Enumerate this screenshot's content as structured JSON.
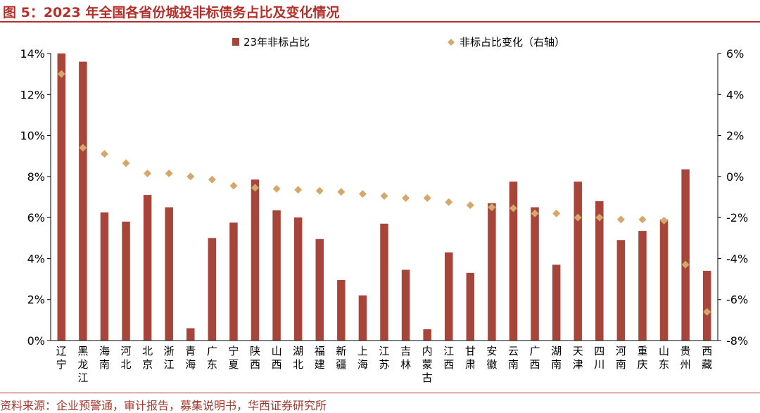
{
  "title": "图 5：2023 年全国各省份城投非标债务占比及变化情况",
  "source": "资料来源：企业预警通，审计报告，募集说明书，华西证券研究所",
  "colors": {
    "bar": "#a8453a",
    "marker": "#d4a86a",
    "accent": "#b5302a"
  },
  "chart_data": {
    "type": "bar",
    "categories": [
      "辽宁",
      "黑龙江",
      "海南",
      "河北",
      "北京",
      "浙江",
      "青海",
      "广东",
      "宁夏",
      "陕西",
      "山西",
      "湖北",
      "福建",
      "新疆",
      "上海",
      "江苏",
      "吉林",
      "内蒙古",
      "江西",
      "甘肃",
      "安徽",
      "云南",
      "广西",
      "湖南",
      "天津",
      "四川",
      "河南",
      "重庆",
      "山东",
      "贵州",
      "西藏"
    ],
    "series": [
      {
        "name": "23年非标占比",
        "type": "bar",
        "axis": "left",
        "values": [
          14.0,
          13.6,
          6.25,
          5.8,
          7.1,
          6.5,
          0.6,
          5.0,
          5.75,
          7.85,
          6.35,
          6.0,
          4.95,
          2.95,
          2.2,
          5.7,
          3.45,
          0.55,
          4.3,
          3.3,
          6.7,
          7.75,
          6.5,
          3.7,
          7.75,
          6.8,
          4.9,
          5.35,
          5.9,
          8.35,
          3.4
        ]
      },
      {
        "name": "非标占比变化（右轴）",
        "type": "scatter",
        "axis": "right",
        "values": [
          5.0,
          1.4,
          1.1,
          0.65,
          0.15,
          0.15,
          0.0,
          -0.15,
          -0.45,
          -0.55,
          -0.6,
          -0.65,
          -0.7,
          -0.75,
          -0.85,
          -0.95,
          -1.05,
          -1.05,
          -1.25,
          -1.4,
          -1.5,
          -1.55,
          -1.8,
          -1.8,
          -2.0,
          -2.0,
          -2.1,
          -2.1,
          -2.15,
          -4.3,
          -6.6
        ]
      }
    ],
    "ylim_left": [
      0,
      14
    ],
    "yticks_left": [
      "0%",
      "2%",
      "4%",
      "6%",
      "8%",
      "10%",
      "12%",
      "14%"
    ],
    "ylim_right": [
      -8,
      6
    ],
    "yticks_right": [
      "-8%",
      "-6%",
      "-4%",
      "-2%",
      "0%",
      "2%",
      "4%",
      "6%"
    ],
    "legend_position": "top",
    "grid": false
  }
}
